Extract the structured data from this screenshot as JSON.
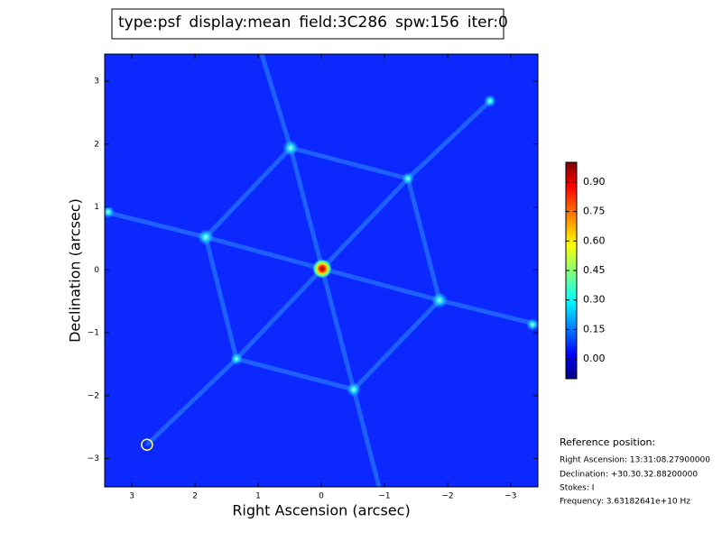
{
  "chart_data": {
    "type": "image",
    "title_parts": [
      {
        "text": "type:psf",
        "color": "#000000"
      },
      {
        "text": "display:mean",
        "color": "#ff0000"
      },
      {
        "text": "field:3C286",
        "color": "#000000"
      },
      {
        "text": "spw:156",
        "color": "#000000"
      },
      {
        "text": "iter:0",
        "color": "#000000"
      }
    ],
    "x_label": "Right Ascension (arcsec)",
    "y_label": "Declination (arcsec)",
    "xlim": [
      3.43,
      -3.43
    ],
    "xticks": [
      3,
      2,
      1,
      0,
      {
        "value": -1,
        "label": "−1"
      },
      {
        "value": -2,
        "label": "−2"
      },
      {
        "value": -3,
        "label": "−3"
      }
    ],
    "ylim": [
      -3.45,
      3.43
    ],
    "yticks": [
      {
        "value": -3,
        "label": "−3"
      },
      {
        "value": -2,
        "label": "−2"
      },
      {
        "value": -1,
        "label": "−1"
      },
      0,
      1,
      2,
      3
    ],
    "colormap": "jet",
    "clim": [
      -0.1,
      1.0
    ],
    "colorbar_ticks": [
      {
        "value": 0,
        "label": "0.00"
      },
      {
        "value": 0.15,
        "label": "0.15"
      },
      {
        "value": 0.3,
        "label": "0.30"
      },
      {
        "value": 0.45,
        "label": "0.45"
      },
      {
        "value": 0.6,
        "label": "0.60"
      },
      {
        "value": 0.75,
        "label": "0.75"
      },
      {
        "value": 0.9,
        "label": "0.90"
      }
    ],
    "marker": {
      "x": 2.76,
      "y": -2.78,
      "color": "#ffff66"
    },
    "info": [
      "Reference position:",
      "Right Ascension: 13:31:08.27900000",
      "Declination: +30.30.32.88200000",
      "Stokes: I",
      "Frequency: 3.63182641e+10 Hz"
    ]
  }
}
